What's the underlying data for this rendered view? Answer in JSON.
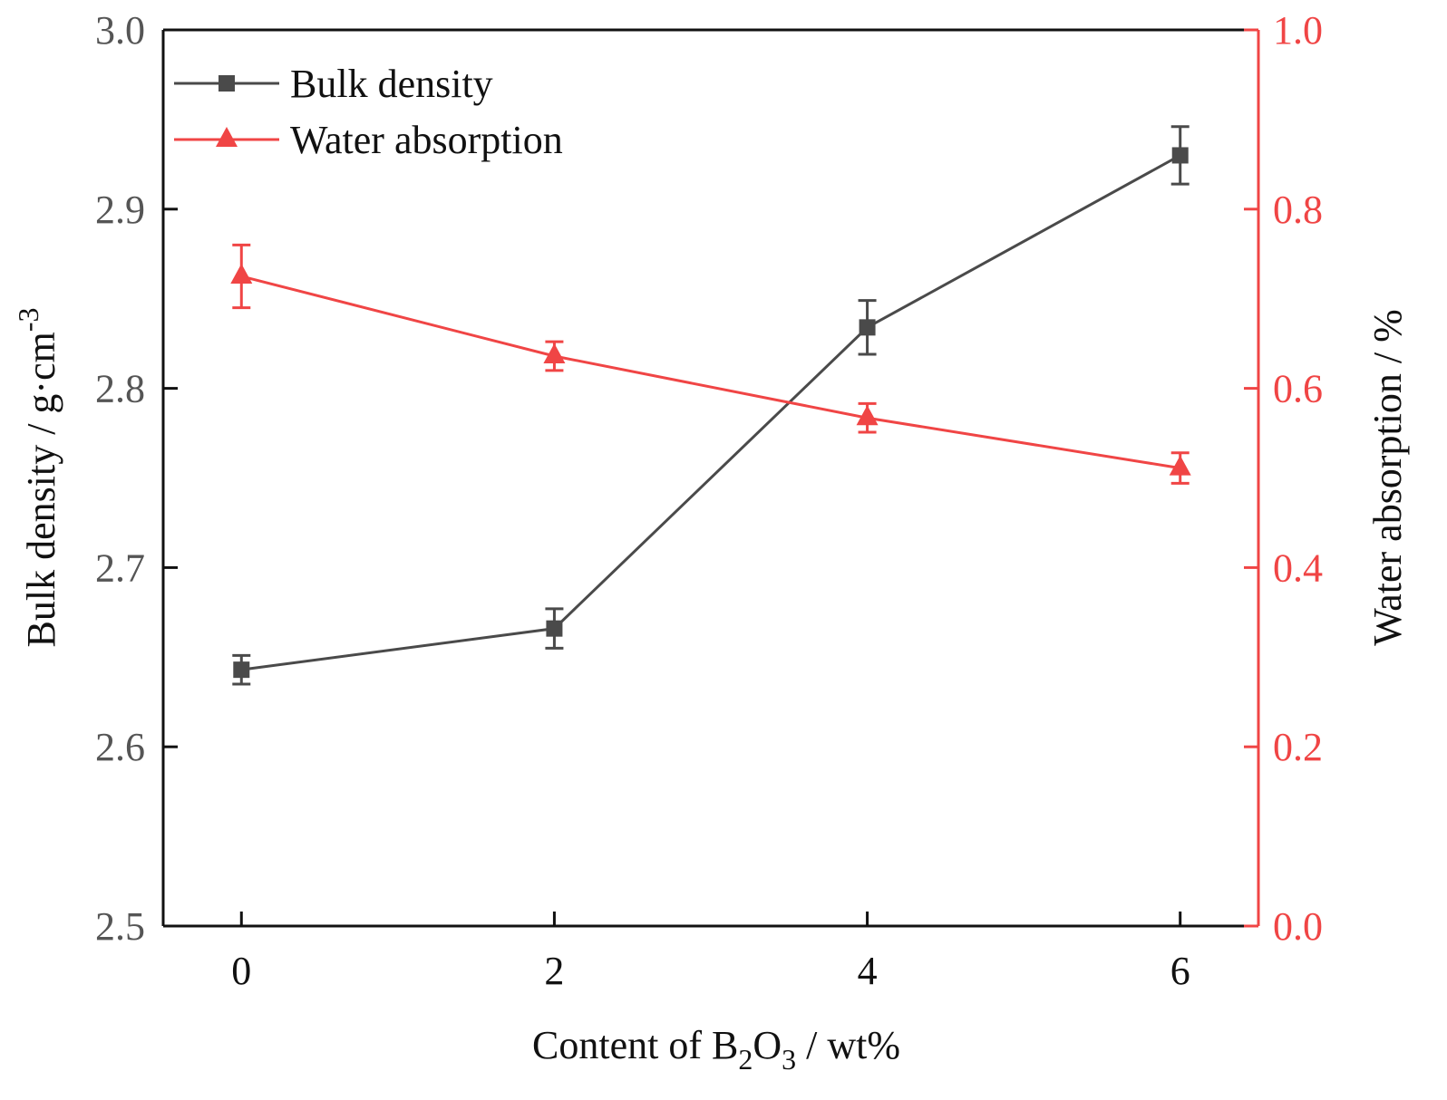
{
  "chart_data": {
    "type": "line",
    "title": "",
    "x": [
      0,
      2,
      4,
      6
    ],
    "xlabel": {
      "prefix": "Content of B",
      "sub1": "2",
      "mid": "O",
      "sub2": "3",
      "suffix": " / wt%"
    },
    "xlim": [
      -0.5,
      6.5
    ],
    "xticks": [
      0,
      2,
      4,
      6
    ],
    "xtick_labels": [
      "0",
      "2",
      "4",
      "6"
    ],
    "ylabel_left": {
      "text": "Bulk density / g·cm",
      "sup": "-3"
    },
    "ylim_left": [
      2.5,
      3.0
    ],
    "yticks_left": [
      2.5,
      2.6,
      2.7,
      2.8,
      2.9,
      3.0
    ],
    "ytick_labels_left": [
      "2.5",
      "2.6",
      "2.7",
      "2.8",
      "2.9",
      "3.0"
    ],
    "ylabel_right": "Water absorption / %",
    "ylim_right": [
      0.0,
      1.0
    ],
    "yticks_right": [
      0.0,
      0.2,
      0.4,
      0.6,
      0.8,
      1.0
    ],
    "ytick_labels_right": [
      "0.0",
      "0.2",
      "0.4",
      "0.6",
      "0.8",
      "1.0"
    ],
    "legend_position": "top-left",
    "series": [
      {
        "name": "Bulk density",
        "axis": "left",
        "marker": "square",
        "color": "#4a4a4a",
        "values": [
          2.643,
          2.666,
          2.834,
          2.93
        ],
        "errors": [
          0.008,
          0.011,
          0.015,
          0.016
        ]
      },
      {
        "name": "Water absorption",
        "axis": "right",
        "marker": "triangle",
        "color": "#f04545",
        "values": [
          0.725,
          0.636,
          0.567,
          0.511
        ],
        "errors": [
          0.035,
          0.016,
          0.016,
          0.017
        ]
      }
    ]
  }
}
